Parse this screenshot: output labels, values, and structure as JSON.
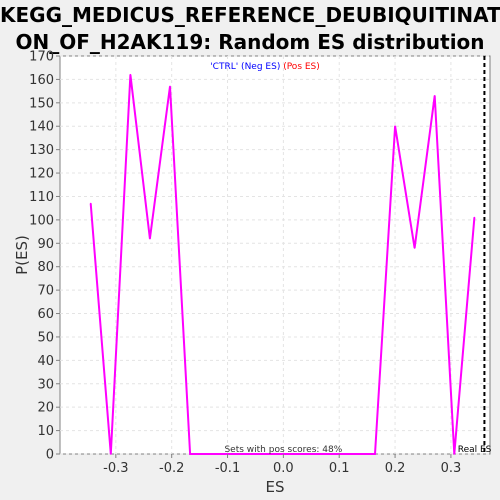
{
  "chart_data": {
    "type": "line",
    "title_lines": [
      "KEGG_MEDICUS_REFERENCE_DEUBIQUITINATI",
      "ON_OF_H2AK119: Random ES distribution"
    ],
    "xlabel": "ES",
    "ylabel": "P(ES)",
    "xlim": [
      -0.4,
      0.37
    ],
    "ylim": [
      0,
      170
    ],
    "x_ticks": [
      -0.3,
      -0.2,
      -0.1,
      0.0,
      0.1,
      0.2,
      0.3
    ],
    "x_tick_labels": [
      "-0.3",
      "-0.2",
      "-0.1",
      "0.0",
      "0.1",
      "0.2",
      "0.3"
    ],
    "y_ticks": [
      0,
      10,
      20,
      30,
      40,
      50,
      60,
      70,
      80,
      90,
      100,
      110,
      120,
      130,
      140,
      150,
      160,
      170
    ],
    "y_tick_labels": [
      "0",
      "10",
      "20",
      "30",
      "40",
      "50",
      "60",
      "70",
      "80",
      "90",
      "100",
      "110",
      "120",
      "130",
      "140",
      "150",
      "160",
      "170"
    ],
    "series": [
      {
        "color": "#ff00ff",
        "x": [
          -0.345,
          -0.309,
          -0.274,
          -0.239,
          -0.203,
          -0.167,
          0.164,
          0.2,
          0.235,
          0.271,
          0.306,
          0.342
        ],
        "y": [
          107,
          0,
          162,
          92,
          157,
          0,
          0,
          140,
          88,
          153,
          0,
          101
        ]
      }
    ],
    "real_es": {
      "x": 0.36,
      "label": "Real ES",
      "color": "#000000"
    },
    "legend": {
      "neg_label": "'CTRL' (Neg ES)",
      "neg_color": "#0000ff",
      "pos_label": " (Pos ES)",
      "pos_color": "#ff0000",
      "position": "top-center"
    },
    "annotation": "Sets with pos scores: 48%",
    "grid": true
  }
}
